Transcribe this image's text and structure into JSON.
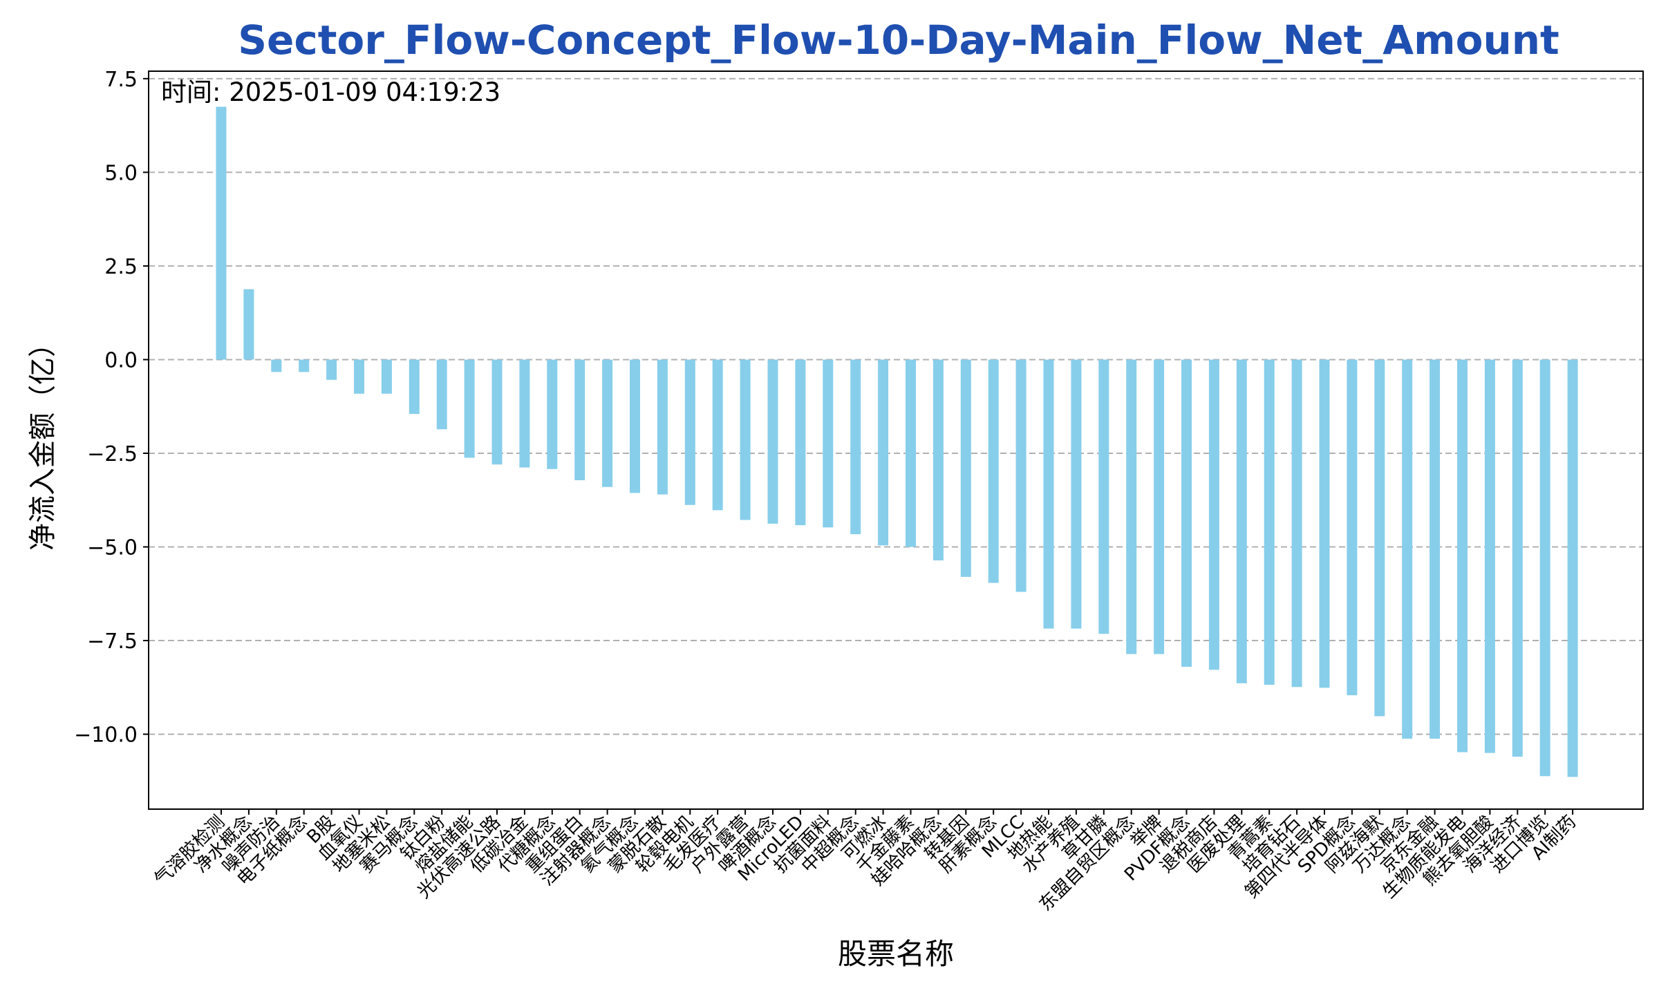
{
  "chart_data": {
    "type": "bar",
    "title": "Sector_Flow-Concept_Flow-10-Day-Main_Flow_Net_Amount",
    "xlabel": "股票名称",
    "ylabel": "净流入金额（亿）",
    "annotation": "时间: 2025-01-09 04:19:23",
    "ylim": [
      -12.0,
      7.7
    ],
    "yticks": [
      7.5,
      5.0,
      2.5,
      0.0,
      -2.5,
      -5.0,
      -7.5,
      -10.0
    ],
    "ytick_labels": [
      "7.5",
      "5.0",
      "2.5",
      "0.0",
      "−2.5",
      "−5.0",
      "−7.5",
      "−10.0"
    ],
    "grid": "y-dashed",
    "bar_color": "#87ceeb",
    "title_color": "#1f4fb0",
    "categories": [
      "气溶胶检测",
      "净水概念",
      "噪声防治",
      "电子纸概念",
      "B股",
      "血氧仪",
      "地塞米松",
      "赛马概念",
      "钛白粉",
      "熔盐储能",
      "光伏高速公路",
      "低碳冶金",
      "代糖概念",
      "重组蛋白",
      "注射器概念",
      "氦气概念",
      "蒙脱石散",
      "轮毂电机",
      "毛发医疗",
      "户外露营",
      "啤酒概念",
      "MicroLED",
      "抗菌面料",
      "中超概念",
      "可燃冰",
      "千金藤素",
      "娃哈哈概念",
      "转基因",
      "肝素概念",
      "MLCC",
      "地热能",
      "水产养殖",
      "草甘膦",
      "东盟自贸区概念",
      "举牌",
      "PVDF概念",
      "退税商店",
      "医废处理",
      "青蒿素",
      "培育钻石",
      "第四代半导体",
      "SPD概念",
      "阿兹海默",
      "万达概念",
      "京东金融",
      "生物质能发电",
      "熊去氧胆酸",
      "海洋经济",
      "进口博览",
      "AI制药"
    ],
    "values": [
      6.75,
      1.88,
      -0.33,
      -0.33,
      -0.54,
      -0.91,
      -0.91,
      -1.45,
      -1.86,
      -2.62,
      -2.8,
      -2.88,
      -2.92,
      -3.22,
      -3.4,
      -3.56,
      -3.6,
      -3.88,
      -4.02,
      -4.28,
      -4.38,
      -4.42,
      -4.48,
      -4.66,
      -4.96,
      -5.0,
      -5.36,
      -5.8,
      -5.96,
      -6.2,
      -7.18,
      -7.18,
      -7.32,
      -7.86,
      -7.86,
      -8.2,
      -8.28,
      -8.64,
      -8.68,
      -8.74,
      -8.76,
      -8.96,
      -9.52,
      -10.12,
      -10.12,
      -10.48,
      -10.5,
      -10.6,
      -11.12,
      -11.14
    ]
  }
}
